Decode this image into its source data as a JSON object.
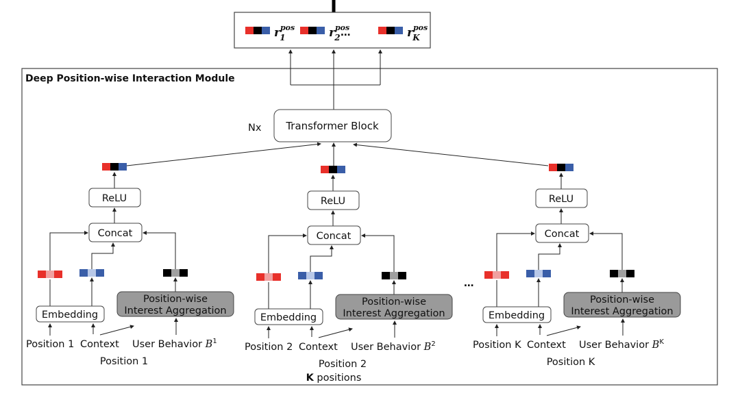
{
  "module_title": "Deep Position-wise Interaction Module",
  "output": {
    "items": [
      {
        "symbol": "r",
        "sup": "pos",
        "sub": "1"
      },
      {
        "symbol": "r",
        "sup": "pos",
        "sub": "2"
      },
      {
        "symbol": "r",
        "sup": "pos",
        "sub": "K"
      }
    ],
    "ellipsis": "…"
  },
  "transformer": {
    "label": "Transformer Block",
    "repeat": "Nx"
  },
  "columns": [
    {
      "relu": "ReLU",
      "concat": "Concat",
      "embedding": "Embedding",
      "aggregation_line1": "Position-wise",
      "aggregation_line2": "Interest Aggregation",
      "position_input": "Position 1",
      "context_input": "Context",
      "behavior_input": "User Behavior ",
      "behavior_sup": "1",
      "caption": "Position 1"
    },
    {
      "relu": "ReLU",
      "concat": "Concat",
      "embedding": "Embedding",
      "aggregation_line1": "Position-wise",
      "aggregation_line2": "Interest Aggregation",
      "position_input": "Position 2",
      "context_input": "Context",
      "behavior_input": "User Behavior ",
      "behavior_sup": "2",
      "caption": "Position 2"
    },
    {
      "relu": "ReLU",
      "concat": "Concat",
      "embedding": "Embedding",
      "aggregation_line1": "Position-wise",
      "aggregation_line2": "Interest Aggregation",
      "position_input": "Position K",
      "context_input": "Context",
      "behavior_input": "User Behavior ",
      "behavior_sup": "K",
      "caption": "Position K"
    }
  ],
  "column_ellipsis": "…",
  "footer": {
    "bold": "K",
    "text": " positions"
  },
  "colors": {
    "red": "#e8302a",
    "light_red": "#f0a0a0",
    "blue": "#3a5ea8",
    "light_blue": "#b8c8e8",
    "black": "#000000",
    "gray": "#a0a0a0",
    "aggregation_fill": "#9a9a9a"
  }
}
